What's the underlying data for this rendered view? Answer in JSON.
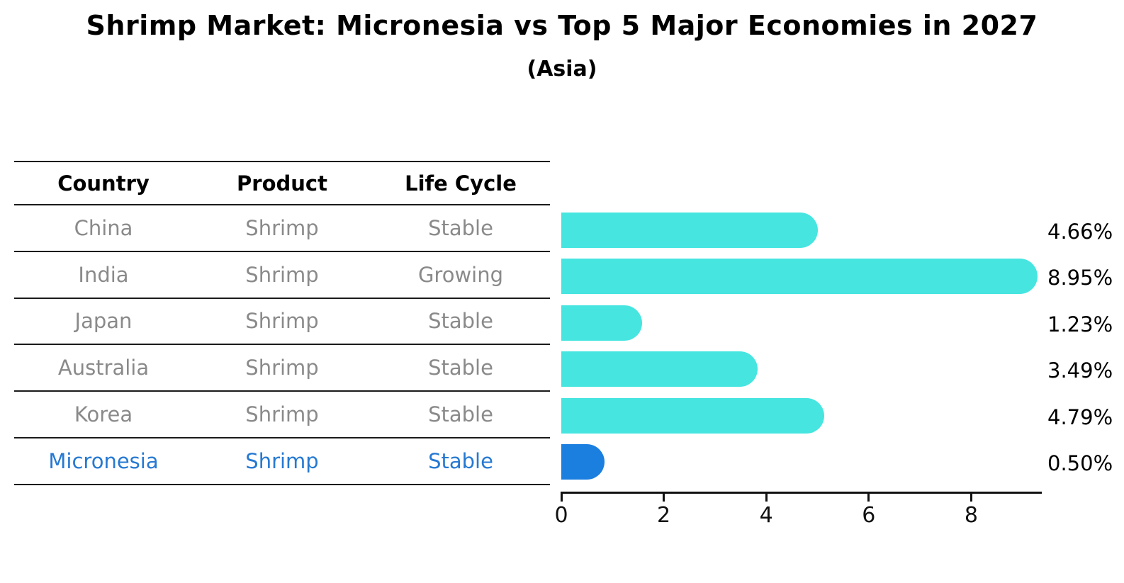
{
  "title": "Shrimp Market: Micronesia vs Top 5 Major Economies in 2027",
  "subtitle": "(Asia)",
  "table": {
    "headers": [
      "Country",
      "Product",
      "Life Cycle"
    ],
    "rows": [
      {
        "country": "China",
        "product": "Shrimp",
        "life_cycle": "Stable"
      },
      {
        "country": "India",
        "product": "Shrimp",
        "life_cycle": "Growing"
      },
      {
        "country": "Japan",
        "product": "Shrimp",
        "life_cycle": "Stable"
      },
      {
        "country": "Australia",
        "product": "Shrimp",
        "life_cycle": "Stable"
      },
      {
        "country": "Korea",
        "product": "Shrimp",
        "life_cycle": "Stable"
      },
      {
        "country": "Micronesia",
        "product": "Shrimp",
        "life_cycle": "Stable"
      }
    ],
    "highlighted_country": "Micronesia",
    "highlight_index": 5
  },
  "chart_data": {
    "type": "bar",
    "orientation": "horizontal",
    "categories": [
      "China",
      "India",
      "Japan",
      "Australia",
      "Korea",
      "Micronesia"
    ],
    "values": [
      4.66,
      8.95,
      1.23,
      3.49,
      4.79,
      0.5
    ],
    "value_labels": [
      "4.66%",
      "8.95%",
      "1.23%",
      "3.49%",
      "4.79%",
      "0.50%"
    ],
    "x_tick_labels": [
      "0",
      "2",
      "4",
      "6",
      "8"
    ],
    "x_tick_values": [
      0,
      2,
      4,
      6,
      8
    ],
    "xlim": [
      0,
      9.4
    ],
    "grid": false,
    "legend": false,
    "bar_color": "#46e5e0",
    "highlight_bar_color": "#1b7fe0",
    "highlight_index": 5
  },
  "colors": {
    "accent_blue": "#2679d2",
    "bar_cyan": "#46e5e0",
    "bar_blue": "#1b7fe0",
    "row_text_gray": "#8a8a8a",
    "line_black": "#1a1a1a"
  }
}
